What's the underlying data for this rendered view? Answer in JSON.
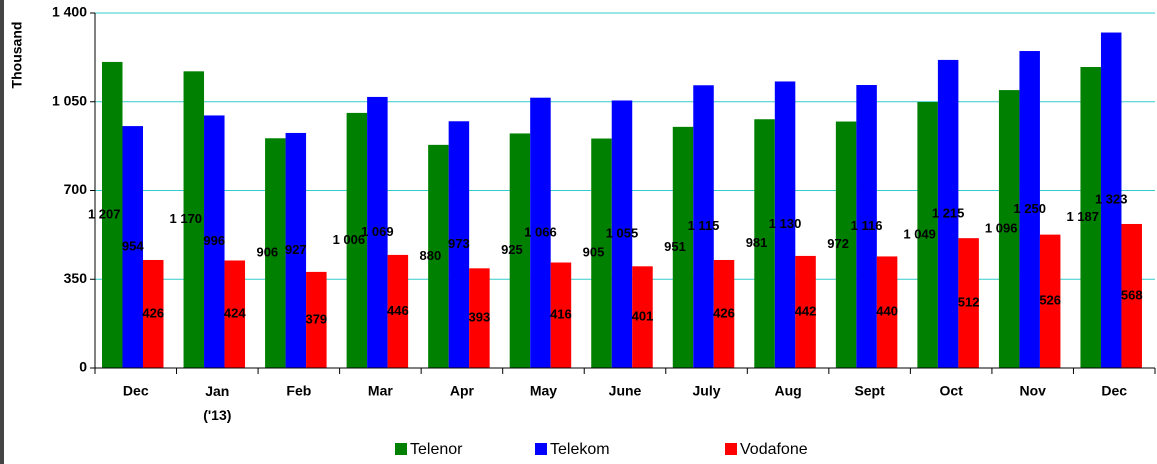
{
  "chart_data": {
    "type": "bar",
    "y_label": "Thousand",
    "categories": [
      "Dec",
      "Jan ('13)",
      "Feb",
      "Mar",
      "Apr",
      "May",
      "June",
      "July",
      "Aug",
      "Sept",
      "Oct",
      "Nov",
      "Dec"
    ],
    "series": [
      {
        "name": "Telenor",
        "color": "#008000",
        "values": [
          1207,
          1170,
          906,
          1006,
          880,
          925,
          905,
          951,
          981,
          972,
          1049,
          1096,
          1187
        ],
        "value_labels": [
          "1 207",
          "1 170",
          "906",
          "1 006",
          "880",
          "925",
          "905",
          "951",
          "981",
          "972",
          "1 049",
          "1 096",
          "1 187"
        ]
      },
      {
        "name": "Telekom",
        "color": "#0000ff",
        "values": [
          954,
          996,
          927,
          1069,
          973,
          1066,
          1055,
          1115,
          1130,
          1116,
          1215,
          1250,
          1323
        ],
        "value_labels": [
          "954",
          "996",
          "927",
          "1 069",
          "973",
          "1 066",
          "1 055",
          "1 115",
          "1 130",
          "1 116",
          "1 215",
          "1 250",
          "1 323"
        ]
      },
      {
        "name": "Vodafone",
        "color": "#ff0000",
        "values": [
          426,
          424,
          379,
          446,
          393,
          416,
          401,
          426,
          442,
          440,
          512,
          526,
          568
        ],
        "value_labels": [
          "426",
          "424",
          "379",
          "446",
          "393",
          "416",
          "401",
          "426",
          "442",
          "440",
          "512",
          "526",
          "568"
        ]
      }
    ],
    "ylim": [
      0,
      1400
    ],
    "yticks": [
      0,
      350,
      700,
      {
        "value": 1050,
        "label": "1 050"
      },
      {
        "value": 1400,
        "label": "1 400"
      }
    ],
    "grid": true,
    "legend": "bottom"
  }
}
